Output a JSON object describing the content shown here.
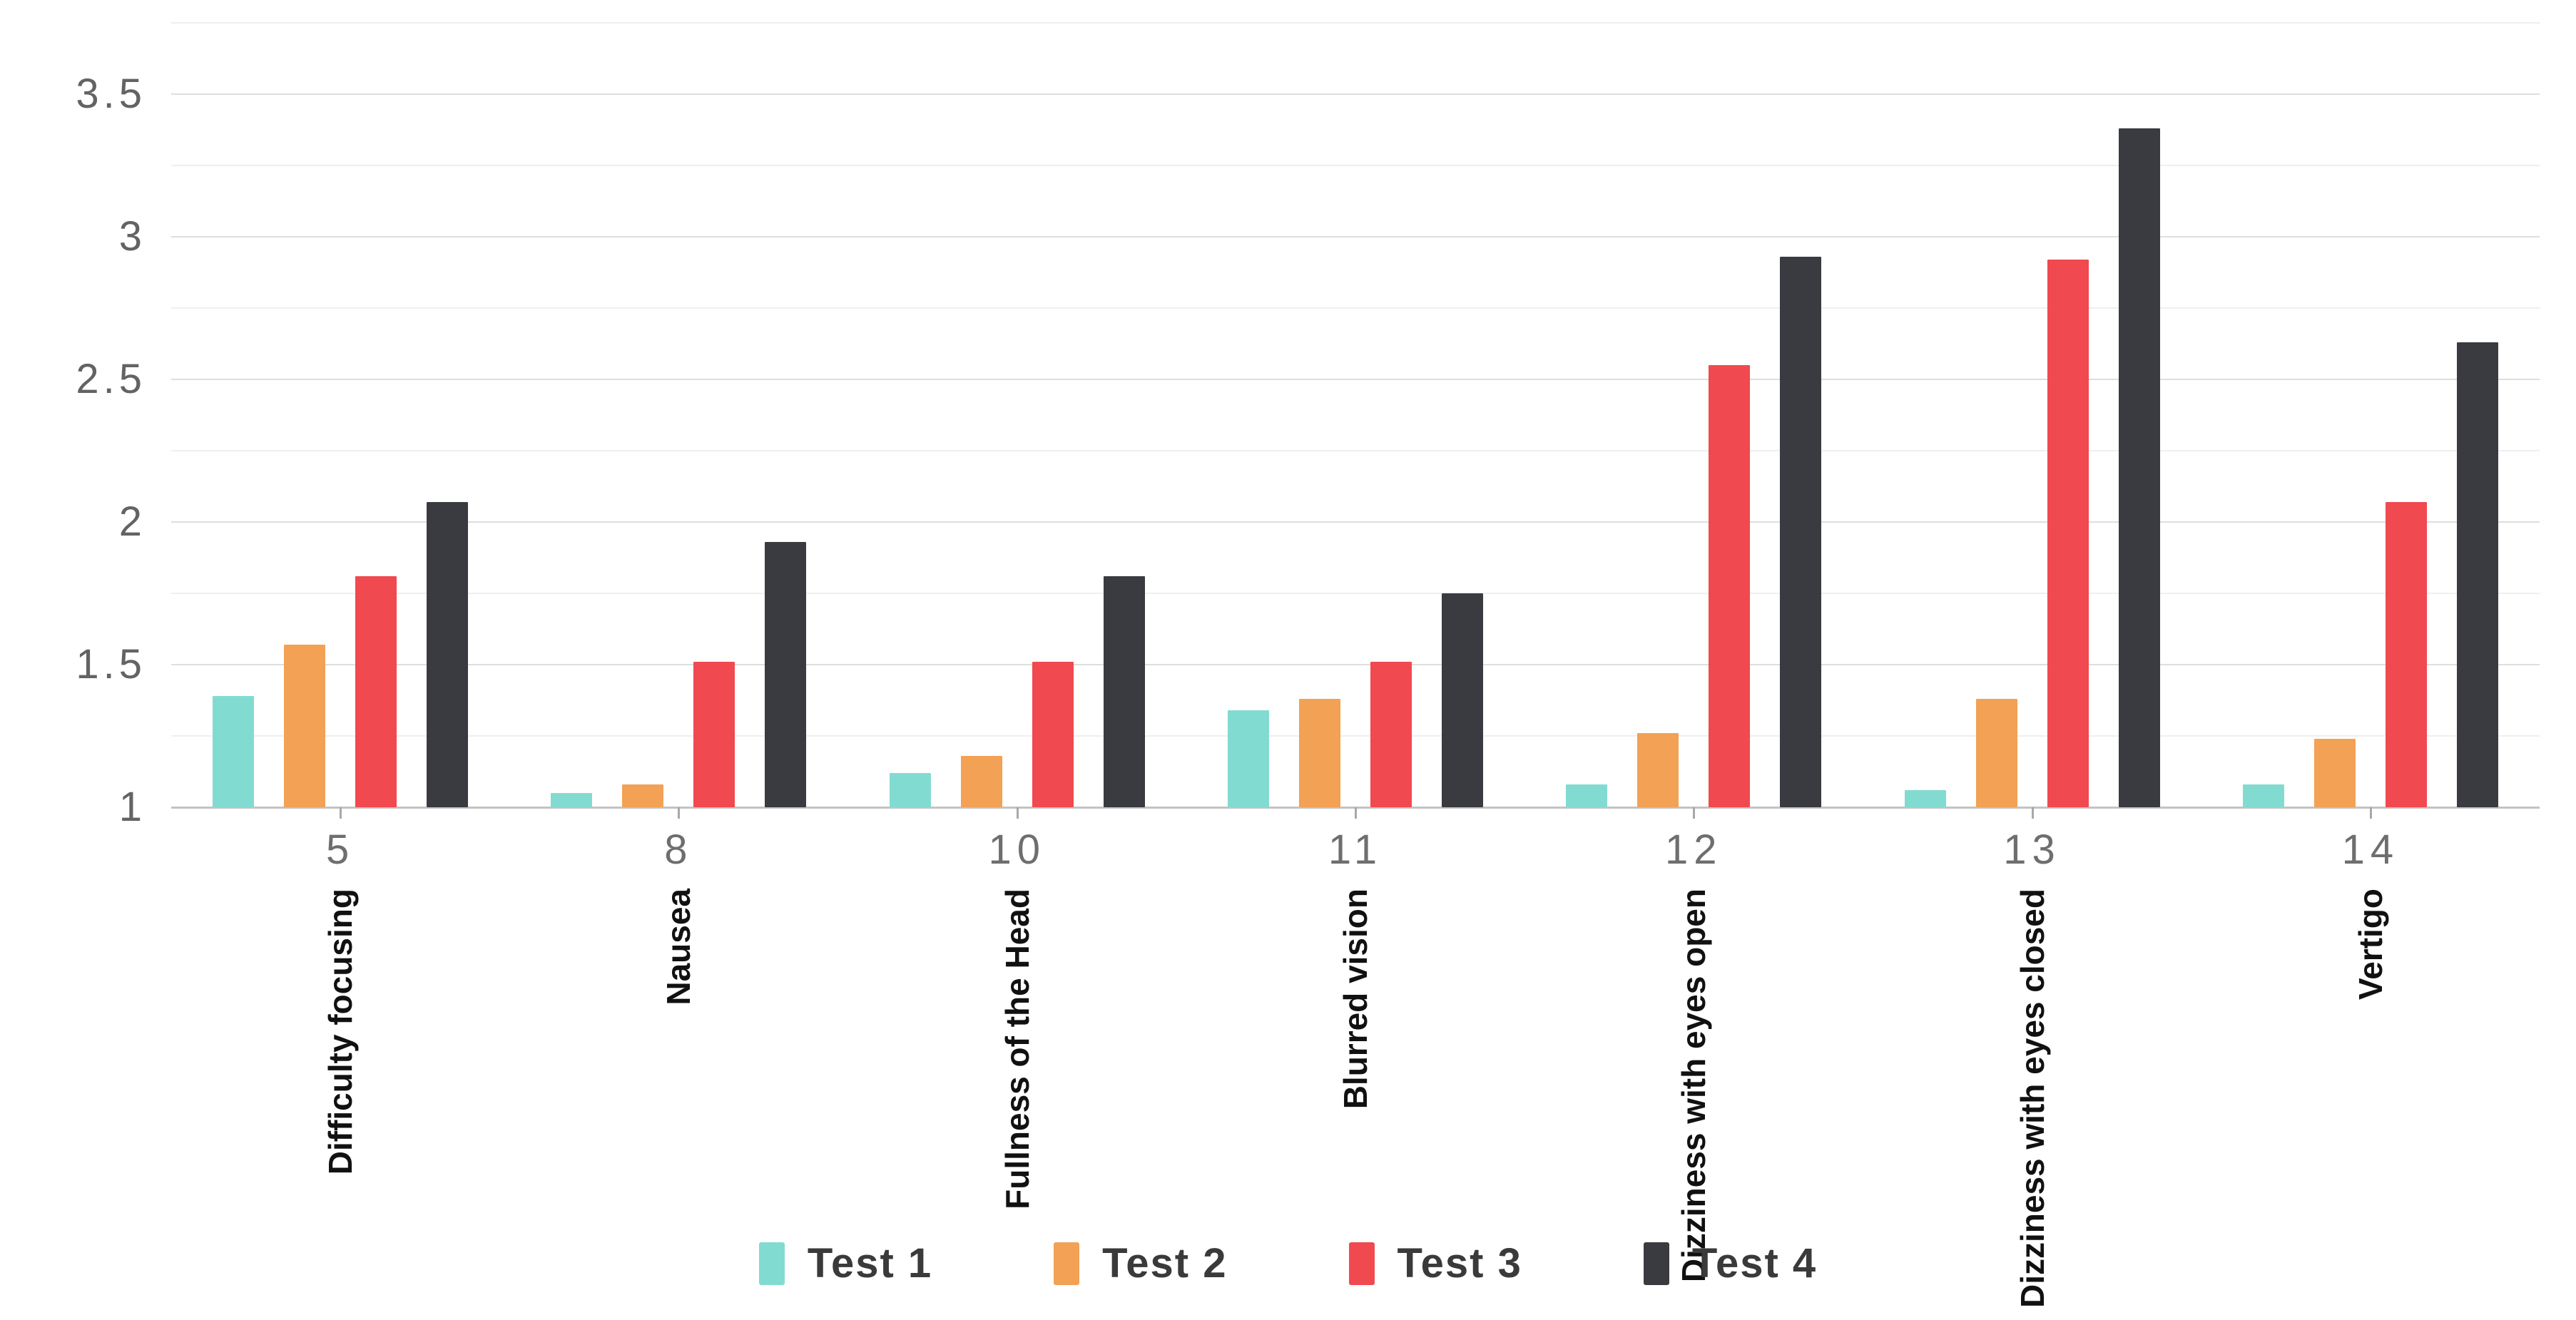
{
  "chart_data": {
    "type": "bar",
    "title": "",
    "xlabel": "",
    "ylabel": "",
    "grid": true,
    "legend_position": "bottom",
    "y_axis": {
      "min": 1,
      "max": 3.75,
      "minor_step": 0.25,
      "label_step": 0.5,
      "tick_labels": [
        "1",
        "1.5",
        "2",
        "2.5",
        "3",
        "3.5"
      ]
    },
    "categories": [
      {
        "code": "5",
        "label": "Difficulty focusing"
      },
      {
        "code": "8",
        "label": "Nausea"
      },
      {
        "code": "10",
        "label": "Fullness of the Head"
      },
      {
        "code": "11",
        "label": "Blurred vision"
      },
      {
        "code": "12",
        "label": "Dizziness with eyes open"
      },
      {
        "code": "13",
        "label": "Dizziness with eyes closed"
      },
      {
        "code": "14",
        "label": "Vertigo"
      }
    ],
    "series": [
      {
        "name": "Test 1",
        "color": "#82DBD1",
        "values": [
          1.39,
          1.05,
          1.12,
          1.34,
          1.08,
          1.06,
          1.08
        ]
      },
      {
        "name": "Test 2",
        "color": "#F2A155",
        "values": [
          1.57,
          1.08,
          1.18,
          1.38,
          1.26,
          1.38,
          1.24
        ]
      },
      {
        "name": "Test 3",
        "color": "#F0494F",
        "values": [
          1.81,
          1.51,
          1.51,
          1.51,
          2.55,
          2.92,
          2.07
        ]
      },
      {
        "name": "Test 4",
        "color": "#3A3B40",
        "values": [
          2.07,
          1.93,
          1.81,
          1.75,
          2.93,
          3.38,
          2.63
        ]
      }
    ]
  }
}
